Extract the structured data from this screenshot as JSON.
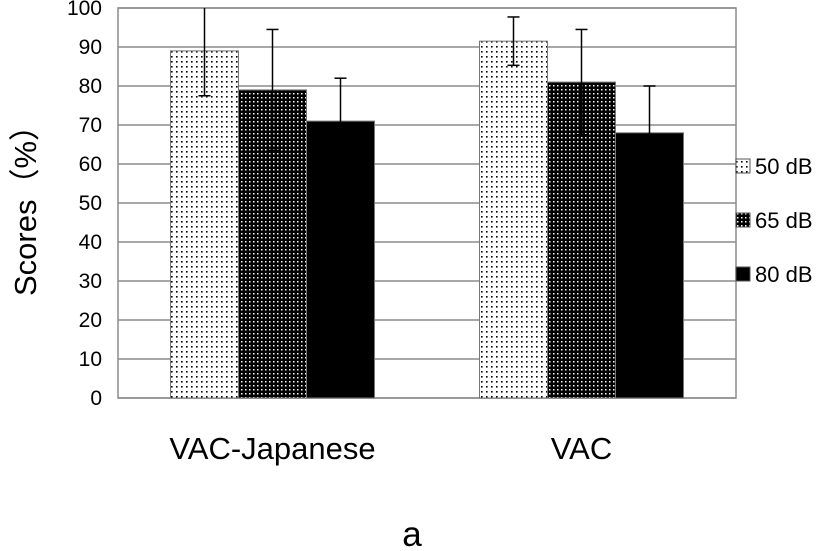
{
  "chart_data": {
    "type": "bar",
    "categories": [
      "VAC-Japanese",
      "VAC"
    ],
    "series": [
      {
        "name": "50 dB",
        "values": [
          89,
          91.5
        ],
        "error": [
          11.5,
          6.2
        ],
        "pattern": "sparse-dots"
      },
      {
        "name": "65 dB",
        "values": [
          79,
          81
        ],
        "error": [
          15.5,
          13.5
        ],
        "pattern": "dense-dots"
      },
      {
        "name": "80 dB",
        "values": [
          71,
          68
        ],
        "error": [
          11,
          12
        ],
        "pattern": "solid"
      }
    ],
    "xlabel": "",
    "ylabel": "Scores（%）",
    "ylim": [
      0,
      100
    ],
    "yticks": [
      0,
      10,
      20,
      30,
      40,
      50,
      60,
      70,
      80,
      90,
      100
    ],
    "grid": true,
    "legend_position": "right",
    "panel_label": "a",
    "colors": {
      "bar_fill_dark": "#000000",
      "bar_fill_light": "#ffffff",
      "grid": "#8c8c8c",
      "frame": "#8c8c8c"
    }
  }
}
